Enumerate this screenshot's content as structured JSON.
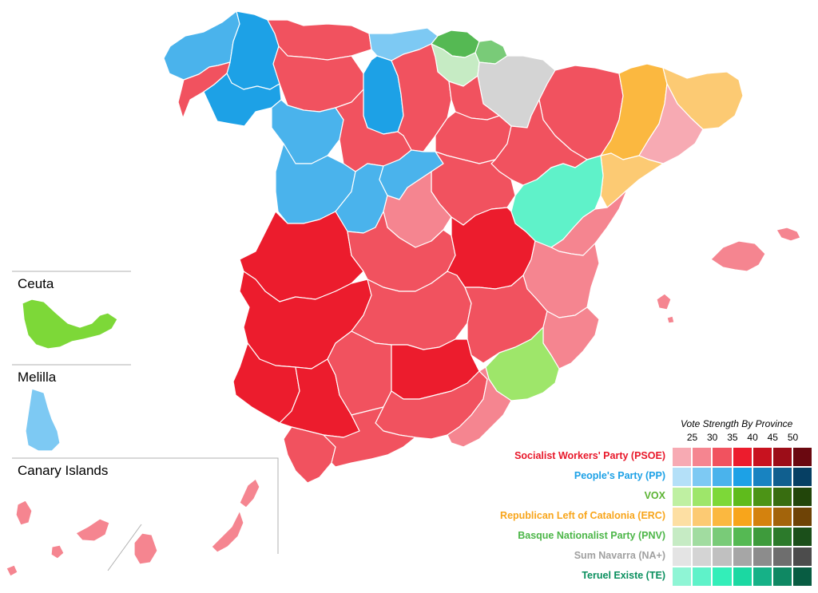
{
  "insets": {
    "ceuta": "Ceuta",
    "melilla": "Melilla",
    "canary": "Canary Islands"
  },
  "legend": {
    "title": "Vote Strength By Province",
    "ticks": [
      "25",
      "30",
      "35",
      "40",
      "45",
      "50"
    ],
    "parties": [
      {
        "name": "Socialist Workers' Party (PSOE)",
        "color": "#e8182a",
        "shades": [
          "#f7aab3",
          "#f58590",
          "#f1525f",
          "#ec1c2d",
          "#c8121f",
          "#9c0d18",
          "#6a0810"
        ]
      },
      {
        "name": "People's Party (PP)",
        "color": "#1da1e6",
        "shades": [
          "#b4e0f8",
          "#7dc9f3",
          "#4ab3ec",
          "#1da1e6",
          "#1883c1",
          "#105f8f",
          "#063f63"
        ]
      },
      {
        "name": "VOX",
        "color": "#5bb332",
        "shades": [
          "#bff0a2",
          "#9ee66a",
          "#7dd838",
          "#5fbb1c",
          "#4c9416",
          "#386d10",
          "#22450a"
        ]
      },
      {
        "name": "Republican Left of Catalonia (ERC)",
        "color": "#f8a51b",
        "shades": [
          "#fddfa3",
          "#fcca73",
          "#fbb840",
          "#f8a51b",
          "#d4820e",
          "#a3640b",
          "#6e4306"
        ]
      },
      {
        "name": "Basque Nationalist Party (PNV)",
        "color": "#4cb648",
        "shades": [
          "#c6ebc4",
          "#a1dca0",
          "#79cb78",
          "#55b953",
          "#3e9b3c",
          "#2c7a2b",
          "#1b4f1a"
        ]
      },
      {
        "name": "Sum Navarra (NA+)",
        "color": "#a0a0a0",
        "shades": [
          "#e4e4e4",
          "#d4d4d4",
          "#c0c0c0",
          "#a6a6a6",
          "#8c8c8c",
          "#6e6e6e",
          "#4c4c4c"
        ]
      },
      {
        "name": "Teruel Existe (TE)",
        "color": "#0a8f5e",
        "shades": [
          "#8ff5d5",
          "#5ff2c9",
          "#33eeb9",
          "#1bd8a2",
          "#16b187",
          "#0f8863",
          "#085c42"
        ]
      }
    ]
  },
  "map_regions": [
    {
      "name": "galicia-west",
      "fill": "#4ab3ec"
    },
    {
      "name": "lugo",
      "fill": "#1da1e6"
    },
    {
      "name": "pontevedra-coast",
      "fill": "#f1525f"
    },
    {
      "name": "ourense",
      "fill": "#1da1e6"
    },
    {
      "name": "asturias",
      "fill": "#f1525f"
    },
    {
      "name": "cantabria",
      "fill": "#7dc9f3"
    },
    {
      "name": "vizcaya",
      "fill": "#55b953"
    },
    {
      "name": "guipuzcoa",
      "fill": "#79cb78"
    },
    {
      "name": "alava",
      "fill": "#c6ebc4"
    },
    {
      "name": "navarra",
      "fill": "#d4d4d4"
    },
    {
      "name": "leon",
      "fill": "#f1525f"
    },
    {
      "name": "palencia",
      "fill": "#1da1e6"
    },
    {
      "name": "burgos",
      "fill": "#f1525f"
    },
    {
      "name": "la-rioja",
      "fill": "#f1525f"
    },
    {
      "name": "zamora",
      "fill": "#4ab3ec"
    },
    {
      "name": "valladolid",
      "fill": "#f1525f"
    },
    {
      "name": "soria",
      "fill": "#f1525f"
    },
    {
      "name": "huesca",
      "fill": "#f1525f"
    },
    {
      "name": "zaragoza",
      "fill": "#f1525f"
    },
    {
      "name": "lleida",
      "fill": "#fbb840"
    },
    {
      "name": "girona",
      "fill": "#fcca73"
    },
    {
      "name": "barcelona",
      "fill": "#f7aab3"
    },
    {
      "name": "tarragona",
      "fill": "#fcca73"
    },
    {
      "name": "salamanca",
      "fill": "#4ab3ec"
    },
    {
      "name": "avila",
      "fill": "#4ab3ec"
    },
    {
      "name": "segovia",
      "fill": "#4ab3ec"
    },
    {
      "name": "guadalajara",
      "fill": "#f1525f"
    },
    {
      "name": "madrid",
      "fill": "#f58590"
    },
    {
      "name": "teruel",
      "fill": "#5ff2c9"
    },
    {
      "name": "castellon",
      "fill": "#f58590"
    },
    {
      "name": "caceres",
      "fill": "#ec1c2d"
    },
    {
      "name": "toledo",
      "fill": "#f1525f"
    },
    {
      "name": "cuenca",
      "fill": "#ec1c2d"
    },
    {
      "name": "valencia",
      "fill": "#f58590"
    },
    {
      "name": "badajoz",
      "fill": "#ec1c2d"
    },
    {
      "name": "ciudad-real",
      "fill": "#f1525f"
    },
    {
      "name": "albacete",
      "fill": "#f1525f"
    },
    {
      "name": "alicante",
      "fill": "#f58590"
    },
    {
      "name": "murcia",
      "fill": "#9ee66a"
    },
    {
      "name": "huelva",
      "fill": "#ec1c2d"
    },
    {
      "name": "sevilla",
      "fill": "#ec1c2d"
    },
    {
      "name": "cordoba",
      "fill": "#f1525f"
    },
    {
      "name": "jaen",
      "fill": "#ec1c2d"
    },
    {
      "name": "granada",
      "fill": "#f1525f"
    },
    {
      "name": "almeria",
      "fill": "#f58590"
    },
    {
      "name": "cadiz",
      "fill": "#f1525f"
    },
    {
      "name": "malaga",
      "fill": "#f1525f"
    },
    {
      "name": "mallorca",
      "fill": "#f58590"
    },
    {
      "name": "menorca",
      "fill": "#f58590"
    },
    {
      "name": "ibiza",
      "fill": "#f58590"
    },
    {
      "name": "ceuta",
      "fill": "#7dd838"
    },
    {
      "name": "melilla",
      "fill": "#7dc9f3"
    },
    {
      "name": "canary-islands",
      "fill": "#f58590"
    }
  ]
}
